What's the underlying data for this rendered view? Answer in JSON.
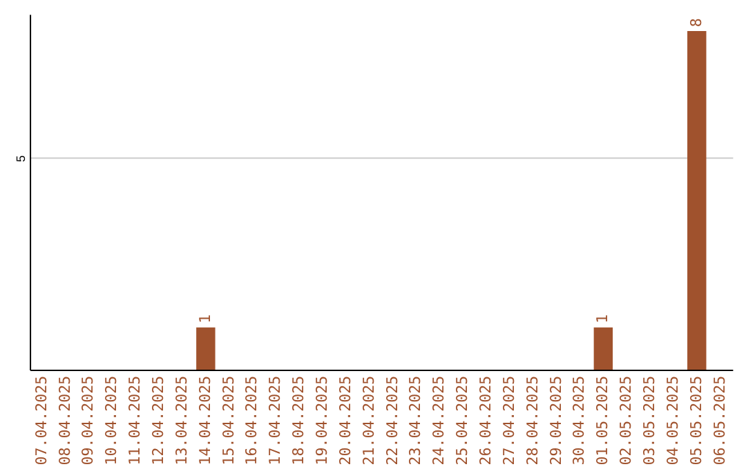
{
  "chart_data": {
    "type": "bar",
    "categories": [
      "07.04.2025",
      "08.04.2025",
      "09.04.2025",
      "10.04.2025",
      "11.04.2025",
      "12.04.2025",
      "13.04.2025",
      "14.04.2025",
      "15.04.2025",
      "16.04.2025",
      "17.04.2025",
      "18.04.2025",
      "19.04.2025",
      "20.04.2025",
      "21.04.2025",
      "22.04.2025",
      "23.04.2025",
      "24.04.2025",
      "25.04.2025",
      "26.04.2025",
      "27.04.2025",
      "28.04.2025",
      "29.04.2025",
      "30.04.2025",
      "01.05.2025",
      "02.05.2025",
      "03.05.2025",
      "04.05.2025",
      "05.05.2025",
      "06.05.2025"
    ],
    "values": [
      0,
      0,
      0,
      0,
      0,
      0,
      0,
      1,
      0,
      0,
      0,
      0,
      0,
      0,
      0,
      0,
      0,
      0,
      0,
      0,
      0,
      0,
      0,
      0,
      1,
      0,
      0,
      0,
      8,
      0
    ],
    "value_labels": [
      null,
      null,
      null,
      null,
      null,
      null,
      null,
      "1",
      null,
      null,
      null,
      null,
      null,
      null,
      null,
      null,
      null,
      null,
      null,
      null,
      null,
      null,
      null,
      null,
      "1",
      null,
      null,
      null,
      "8",
      null
    ],
    "color": "#a0522d",
    "ylim": [
      0,
      8.4
    ],
    "yticks": [
      5
    ],
    "grid": "y"
  }
}
